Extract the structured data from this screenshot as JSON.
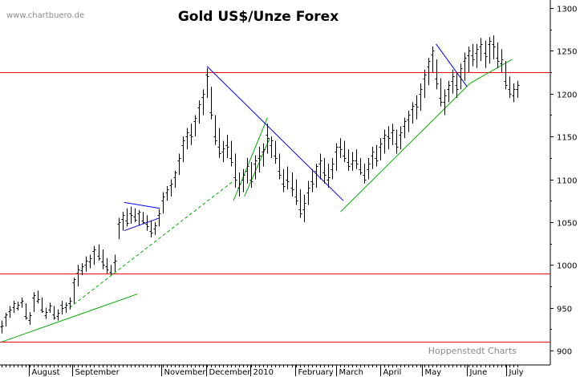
{
  "chart_data": {
    "type": "bar",
    "title": "Gold US$/Unze Forex",
    "watermark": "www.chartbuero.de",
    "credit": "Hoppenstedt Charts",
    "ylim": [
      900,
      1305
    ],
    "y_ticks": [
      900,
      950,
      1000,
      1050,
      1100,
      1150,
      1200,
      1250,
      1300
    ],
    "y_tick_labels": [
      "900",
      "950",
      "1000",
      "1050",
      "1100",
      "1150",
      "1200",
      "1250",
      "1300"
    ],
    "months": [
      "August",
      "September",
      "November",
      "December",
      "2010",
      "February",
      "March",
      "April",
      "May",
      "June",
      "July"
    ],
    "x_domain": [
      0,
      100
    ],
    "month_positions": [
      5.1,
      12.7,
      28.1,
      36.0,
      43.6,
      51.5,
      58.5,
      66.2,
      73.5,
      81.3,
      88.1
    ],
    "series": [
      {
        "name": "Gold",
        "values": [
          [
            0.0,
            920,
            935,
            928,
            929
          ],
          [
            0.7,
            928,
            944,
            939,
            942
          ],
          [
            1.4,
            938,
            952,
            946,
            948
          ],
          [
            2.1,
            944,
            958,
            951,
            955
          ],
          [
            2.8,
            947,
            957,
            950,
            953
          ],
          [
            3.5,
            950,
            962,
            956,
            958
          ],
          [
            4.2,
            936,
            955,
            940,
            938
          ],
          [
            4.9,
            930,
            945,
            936,
            941
          ],
          [
            5.6,
            945,
            968,
            962,
            965
          ],
          [
            6.3,
            955,
            970,
            958,
            960
          ],
          [
            7.0,
            944,
            962,
            948,
            946
          ],
          [
            7.7,
            937,
            950,
            941,
            945
          ],
          [
            8.4,
            944,
            956,
            948,
            952
          ],
          [
            9.1,
            936,
            952,
            942,
            938
          ],
          [
            9.8,
            935,
            948,
            940,
            944
          ],
          [
            10.5,
            942,
            958,
            953,
            950
          ],
          [
            11.2,
            944,
            956,
            951,
            953
          ],
          [
            11.9,
            948,
            962,
            955,
            958
          ],
          [
            12.6,
            955,
            985,
            980,
            983
          ],
          [
            13.3,
            975,
            1000,
            991,
            995
          ],
          [
            14.0,
            988,
            1002,
            994,
            998
          ],
          [
            14.7,
            992,
            1010,
            1000,
            1005
          ],
          [
            15.4,
            996,
            1012,
            1004,
            1008
          ],
          [
            16.1,
            1000,
            1022,
            1016,
            1018
          ],
          [
            16.8,
            1005,
            1024,
            1011,
            1008
          ],
          [
            17.5,
            995,
            1018,
            1004,
            1000
          ],
          [
            18.2,
            990,
            1008,
            998,
            995
          ],
          [
            18.9,
            988,
            1000,
            992,
            990
          ],
          [
            19.6,
            992,
            1012,
            1003,
            1005
          ],
          [
            20.3,
            1030,
            1055,
            1048,
            1050
          ],
          [
            21.0,
            1040,
            1062,
            1054,
            1058
          ],
          [
            21.7,
            1045,
            1066,
            1052,
            1049
          ],
          [
            22.4,
            1048,
            1068,
            1060,
            1058
          ],
          [
            23.1,
            1050,
            1066,
            1056,
            1053
          ],
          [
            23.8,
            1046,
            1064,
            1060,
            1062
          ],
          [
            24.5,
            1048,
            1062,
            1052,
            1050
          ],
          [
            25.2,
            1040,
            1058,
            1048,
            1045
          ],
          [
            25.9,
            1032,
            1052,
            1040,
            1038
          ],
          [
            26.6,
            1035,
            1050,
            1042,
            1046
          ],
          [
            27.3,
            1045,
            1065,
            1058,
            1060
          ],
          [
            28.0,
            1060,
            1085,
            1075,
            1080
          ],
          [
            28.7,
            1075,
            1092,
            1085,
            1088
          ],
          [
            29.4,
            1080,
            1100,
            1093,
            1095
          ],
          [
            30.1,
            1090,
            1110,
            1102,
            1108
          ],
          [
            30.8,
            1105,
            1130,
            1122,
            1125
          ],
          [
            31.5,
            1120,
            1150,
            1140,
            1145
          ],
          [
            32.2,
            1135,
            1160,
            1150,
            1155
          ],
          [
            32.9,
            1140,
            1165,
            1152,
            1150
          ],
          [
            33.6,
            1150,
            1175,
            1168,
            1172
          ],
          [
            34.3,
            1165,
            1192,
            1184,
            1188
          ],
          [
            35.0,
            1175,
            1205,
            1196,
            1200
          ],
          [
            35.7,
            1195,
            1230,
            1222,
            1220
          ],
          [
            36.4,
            1170,
            1208,
            1178,
            1175
          ],
          [
            37.1,
            1140,
            1175,
            1150,
            1145
          ],
          [
            37.8,
            1125,
            1160,
            1138,
            1130
          ],
          [
            38.5,
            1120,
            1145,
            1132,
            1136
          ],
          [
            39.2,
            1125,
            1152,
            1140,
            1138
          ],
          [
            39.9,
            1115,
            1145,
            1125,
            1120
          ],
          [
            40.6,
            1090,
            1130,
            1102,
            1100
          ],
          [
            41.3,
            1080,
            1108,
            1090,
            1095
          ],
          [
            42.0,
            1085,
            1112,
            1100,
            1105
          ],
          [
            42.7,
            1095,
            1125,
            1110,
            1115
          ],
          [
            43.4,
            1090,
            1120,
            1100,
            1098
          ],
          [
            44.1,
            1100,
            1128,
            1118,
            1122
          ],
          [
            44.8,
            1108,
            1138,
            1125,
            1128
          ],
          [
            45.5,
            1115,
            1142,
            1132,
            1135
          ],
          [
            46.2,
            1130,
            1165,
            1152,
            1148
          ],
          [
            46.9,
            1125,
            1150,
            1140,
            1145
          ],
          [
            47.6,
            1118,
            1145,
            1128,
            1125
          ],
          [
            48.3,
            1100,
            1130,
            1110,
            1105
          ],
          [
            49.0,
            1085,
            1112,
            1095,
            1092
          ],
          [
            49.7,
            1088,
            1115,
            1100,
            1098
          ],
          [
            50.4,
            1080,
            1108,
            1090,
            1088
          ],
          [
            51.1,
            1070,
            1100,
            1080,
            1075
          ],
          [
            51.8,
            1055,
            1088,
            1065,
            1060
          ],
          [
            52.5,
            1050,
            1082,
            1065,
            1072
          ],
          [
            53.2,
            1070,
            1098,
            1085,
            1090
          ],
          [
            53.9,
            1085,
            1112,
            1098,
            1095
          ],
          [
            54.6,
            1090,
            1118,
            1110,
            1115
          ],
          [
            55.3,
            1100,
            1130,
            1118,
            1122
          ],
          [
            56.0,
            1095,
            1125,
            1108,
            1105
          ],
          [
            56.7,
            1090,
            1118,
            1100,
            1102
          ],
          [
            57.4,
            1100,
            1125,
            1112,
            1118
          ],
          [
            58.1,
            1110,
            1142,
            1132,
            1138
          ],
          [
            58.8,
            1125,
            1148,
            1138,
            1135
          ],
          [
            59.5,
            1120,
            1145,
            1128,
            1125
          ],
          [
            60.2,
            1110,
            1135,
            1120,
            1115
          ],
          [
            60.9,
            1110,
            1132,
            1118,
            1122
          ],
          [
            61.6,
            1112,
            1135,
            1122,
            1118
          ],
          [
            62.3,
            1105,
            1125,
            1112,
            1108
          ],
          [
            63.0,
            1095,
            1118,
            1105,
            1100
          ],
          [
            63.7,
            1100,
            1125,
            1112,
            1118
          ],
          [
            64.4,
            1112,
            1138,
            1128,
            1132
          ],
          [
            65.1,
            1115,
            1140,
            1125,
            1122
          ],
          [
            65.8,
            1122,
            1148,
            1138,
            1142
          ],
          [
            66.5,
            1130,
            1158,
            1148,
            1152
          ],
          [
            67.2,
            1135,
            1162,
            1150,
            1148
          ],
          [
            67.9,
            1140,
            1165,
            1155,
            1158
          ],
          [
            68.6,
            1130,
            1158,
            1142,
            1138
          ],
          [
            69.3,
            1135,
            1162,
            1152,
            1155
          ],
          [
            70.0,
            1148,
            1172,
            1162,
            1168
          ],
          [
            70.7,
            1155,
            1180,
            1170,
            1175
          ],
          [
            71.4,
            1165,
            1190,
            1182,
            1186
          ],
          [
            72.1,
            1170,
            1198,
            1188,
            1185
          ],
          [
            72.8,
            1180,
            1212,
            1200,
            1205
          ],
          [
            73.5,
            1195,
            1228,
            1218,
            1222
          ],
          [
            74.2,
            1210,
            1242,
            1232,
            1238
          ],
          [
            74.9,
            1225,
            1255,
            1246,
            1250
          ],
          [
            75.6,
            1205,
            1240,
            1218,
            1212
          ],
          [
            76.3,
            1185,
            1218,
            1195,
            1190
          ],
          [
            77.0,
            1175,
            1205,
            1190,
            1198
          ],
          [
            77.7,
            1190,
            1215,
            1205,
            1210
          ],
          [
            78.4,
            1200,
            1228,
            1215,
            1220
          ],
          [
            79.1,
            1195,
            1225,
            1210,
            1205
          ],
          [
            79.8,
            1205,
            1235,
            1225,
            1230
          ],
          [
            80.5,
            1215,
            1248,
            1238,
            1242
          ],
          [
            81.2,
            1225,
            1255,
            1245,
            1250
          ],
          [
            81.9,
            1232,
            1258,
            1245,
            1240
          ],
          [
            82.6,
            1230,
            1258,
            1248,
            1252
          ],
          [
            83.3,
            1238,
            1265,
            1255,
            1258
          ],
          [
            84.0,
            1230,
            1262,
            1248,
            1244
          ],
          [
            84.7,
            1235,
            1266,
            1258,
            1262
          ],
          [
            85.4,
            1240,
            1268,
            1258,
            1255
          ],
          [
            86.1,
            1230,
            1260,
            1242,
            1238
          ],
          [
            86.8,
            1225,
            1252,
            1235,
            1240
          ],
          [
            87.5,
            1205,
            1238,
            1215,
            1210
          ],
          [
            88.2,
            1195,
            1220,
            1205,
            1200
          ],
          [
            88.9,
            1190,
            1212,
            1198,
            1205
          ],
          [
            89.6,
            1195,
            1215,
            1205,
            1210
          ]
        ]
      }
    ],
    "horizontal_lines": [
      {
        "y": 1225,
        "color": "#ff0000"
      },
      {
        "y": 990,
        "color": "#ff0000"
      },
      {
        "y": 910,
        "color": "#ff0000"
      }
    ],
    "trend_lines": [
      {
        "x1": 0,
        "y1": 910,
        "x2": 23.6,
        "y2": 966,
        "color": "#00aa00",
        "dash": false
      },
      {
        "x1": 11.8,
        "y1": 950,
        "x2": 40.3,
        "y2": 1098,
        "color": "#00aa00",
        "dash": true
      },
      {
        "x1": 40.3,
        "y1": 1075,
        "x2": 46.2,
        "y2": 1172,
        "color": "#00aa00",
        "dash": false
      },
      {
        "x1": 42.2,
        "y1": 1080,
        "x2": 46.6,
        "y2": 1148,
        "color": "#00aa00",
        "dash": false
      },
      {
        "x1": 58.9,
        "y1": 1062,
        "x2": 81.4,
        "y2": 1212,
        "color": "#00aa00",
        "dash": false
      },
      {
        "x1": 81.4,
        "y1": 1212,
        "x2": 88.7,
        "y2": 1240,
        "color": "#00aa00",
        "dash": false
      },
      {
        "x1": 35.7,
        "y1": 1232,
        "x2": 59.4,
        "y2": 1075,
        "color": "#0000ff",
        "dash": false
      },
      {
        "x1": 75.5,
        "y1": 1258,
        "x2": 80.9,
        "y2": 1208,
        "color": "#0000ff",
        "dash": false
      },
      {
        "x1": 21.3,
        "y1": 1073,
        "x2": 27.5,
        "y2": 1066,
        "color": "#0000ff",
        "dash": false
      },
      {
        "x1": 21.3,
        "y1": 1040,
        "x2": 27.5,
        "y2": 1055,
        "color": "#0000ff",
        "dash": false
      }
    ],
    "grid": false
  }
}
